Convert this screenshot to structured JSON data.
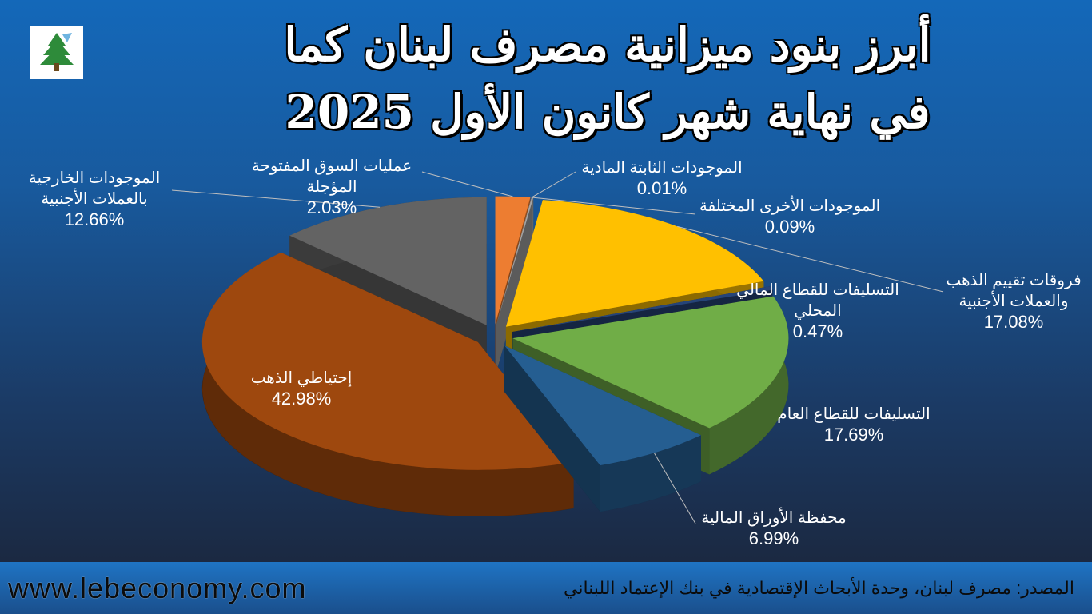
{
  "header": {
    "title": [
      "أبرز بنود ميزانية مصرف لبنان كما",
      "في نهاية شهر كانون الأول 2025"
    ]
  },
  "chart_data": {
    "type": "pie",
    "categories": [
      "عمليات السوق المفتوحة المؤجلة",
      "الموجودات الثابتة المادية",
      "الموجودات الأخرى المختلفة",
      "فروقات تقييم الذهب والعملات الأجنبية",
      "التسليفات للقطاع المالي المحلي",
      "التسليفات للقطاع العام",
      "محفظة الأوراق المالية",
      "إحتياطي الذهب",
      "الموجودات الخارجية بالعملات الأجنبية"
    ],
    "values": [
      2.03,
      0.01,
      0.09,
      17.08,
      0.47,
      17.69,
      6.99,
      42.98,
      12.66
    ],
    "value_labels": [
      "2.03%",
      "0.01%",
      "0.09%",
      "17.08%",
      "0.47%",
      "17.69%",
      "6.99%",
      "42.98%",
      "12.66%"
    ],
    "colors": [
      "#ed7d31",
      "#bfbfbf",
      "#a5a5a5",
      "#ffc000",
      "#264478",
      "#70ad47",
      "#255e91",
      "#9e480e",
      "#636363"
    ]
  },
  "footer": {
    "website": "www.lebeconomy.com",
    "source": "المصدر: مصرف لبنان، وحدة الأبحاث الإقتصادية في بنك الإعتماد اللبناني"
  }
}
